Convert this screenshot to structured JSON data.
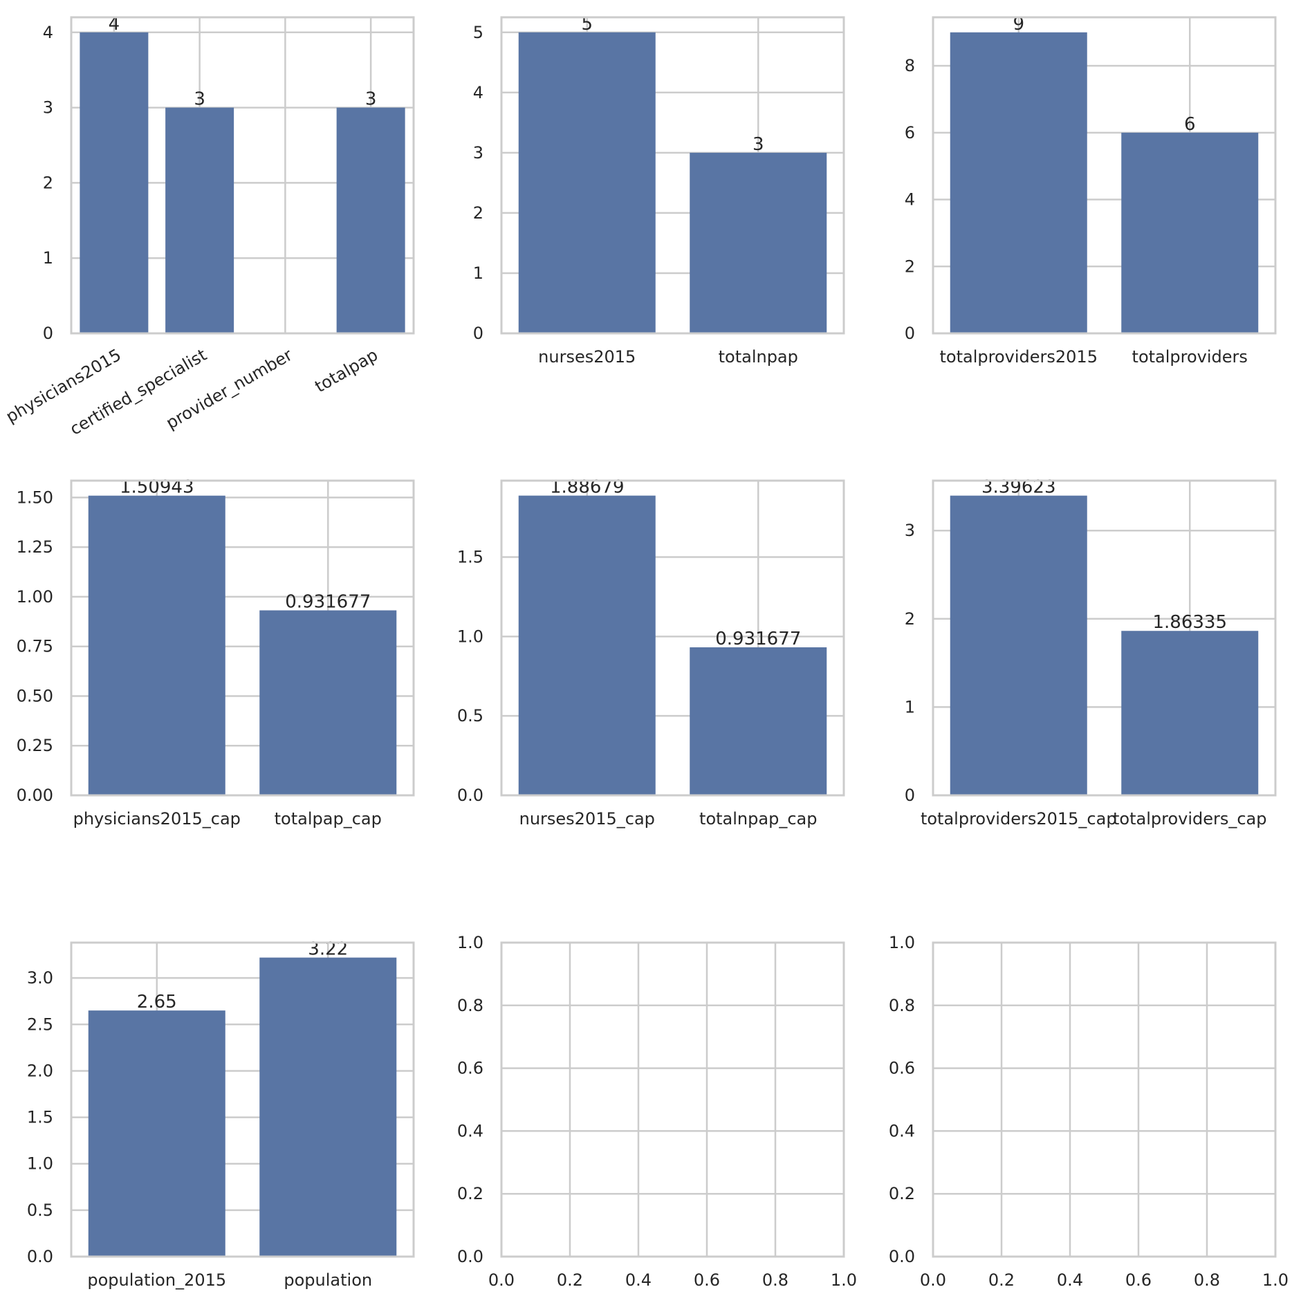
{
  "colors": {
    "bar": "#5975a4",
    "grid": "#cccccc",
    "text": "#262626",
    "background": "#ffffff"
  },
  "chart_data": [
    {
      "type": "bar",
      "title": "",
      "xlabel": "",
      "ylabel": "",
      "categories": [
        "physicians2015",
        "certified_specialist",
        "provider_number",
        "totalpap"
      ],
      "values": [
        4,
        3,
        null,
        3
      ],
      "data_labels": [
        "4",
        "3",
        "",
        "3"
      ],
      "ylim": [
        0,
        4.2
      ],
      "yticks": [
        "0",
        "1",
        "2",
        "3",
        "4"
      ],
      "xtick_rotation": "30 degrees",
      "grid": true,
      "legend": false
    },
    {
      "type": "bar",
      "title": "",
      "xlabel": "",
      "ylabel": "",
      "categories": [
        "nurses2015",
        "totalnpap"
      ],
      "values": [
        5,
        3
      ],
      "data_labels": [
        "5",
        "3"
      ],
      "ylim": [
        0,
        5.25
      ],
      "yticks": [
        "0",
        "1",
        "2",
        "3",
        "4",
        "5"
      ],
      "grid": true,
      "legend": false
    },
    {
      "type": "bar",
      "title": "",
      "xlabel": "",
      "ylabel": "",
      "categories": [
        "totalproviders2015",
        "totalproviders"
      ],
      "values": [
        9,
        6
      ],
      "data_labels": [
        "9",
        "6"
      ],
      "ylim": [
        0,
        9.45
      ],
      "yticks": [
        "0",
        "2",
        "4",
        "6",
        "8"
      ],
      "grid": true,
      "legend": false
    },
    {
      "type": "bar",
      "title": "",
      "xlabel": "",
      "ylabel": "",
      "categories": [
        "physicians2015_cap",
        "totalpap_cap"
      ],
      "values": [
        1.50943,
        0.931677
      ],
      "data_labels": [
        "1.50943",
        "0.931677"
      ],
      "ylim": [
        0,
        1.585
      ],
      "yticks": [
        "0.00",
        "0.25",
        "0.50",
        "0.75",
        "1.00",
        "1.25",
        "1.50"
      ],
      "grid": true,
      "legend": false
    },
    {
      "type": "bar",
      "title": "",
      "xlabel": "",
      "ylabel": "",
      "categories": [
        "nurses2015_cap",
        "totalnpap_cap"
      ],
      "values": [
        1.88679,
        0.931677
      ],
      "data_labels": [
        "1.88679",
        "0.931677"
      ],
      "ylim": [
        0,
        1.981
      ],
      "yticks": [
        "0.0",
        "0.5",
        "1.0",
        "1.5"
      ],
      "grid": true,
      "legend": false
    },
    {
      "type": "bar",
      "title": "",
      "xlabel": "",
      "ylabel": "",
      "categories": [
        "totalproviders2015_cap",
        "totalproviders_cap"
      ],
      "values": [
        3.39623,
        1.86335
      ],
      "data_labels": [
        "3.39623",
        "1.86335"
      ],
      "ylim": [
        0,
        3.566
      ],
      "yticks": [
        "0",
        "1",
        "2",
        "3"
      ],
      "grid": true,
      "legend": false
    },
    {
      "type": "bar",
      "title": "",
      "xlabel": "",
      "ylabel": "",
      "categories": [
        "population_2015",
        "population"
      ],
      "values": [
        2.65,
        3.22
      ],
      "data_labels": [
        "2.65",
        "3.22"
      ],
      "ylim": [
        0,
        3.381
      ],
      "yticks": [
        "0.0",
        "0.5",
        "1.0",
        "1.5",
        "2.0",
        "2.5",
        "3.0"
      ],
      "grid": true,
      "legend": false
    },
    {
      "type": "empty",
      "title": "",
      "xlabel": "",
      "ylabel": "",
      "xlim": [
        0,
        1
      ],
      "ylim": [
        0,
        1
      ],
      "xticks": [
        "0.0",
        "0.2",
        "0.4",
        "0.6",
        "0.8",
        "1.0"
      ],
      "yticks": [
        "0.0",
        "0.2",
        "0.4",
        "0.6",
        "0.8",
        "1.0"
      ],
      "grid": true,
      "legend": false
    },
    {
      "type": "empty",
      "title": "",
      "xlabel": "",
      "ylabel": "",
      "xlim": [
        0,
        1
      ],
      "ylim": [
        0,
        1
      ],
      "xticks": [
        "0.0",
        "0.2",
        "0.4",
        "0.6",
        "0.8",
        "1.0"
      ],
      "yticks": [
        "0.0",
        "0.2",
        "0.4",
        "0.6",
        "0.8",
        "1.0"
      ],
      "grid": true,
      "legend": false
    }
  ]
}
